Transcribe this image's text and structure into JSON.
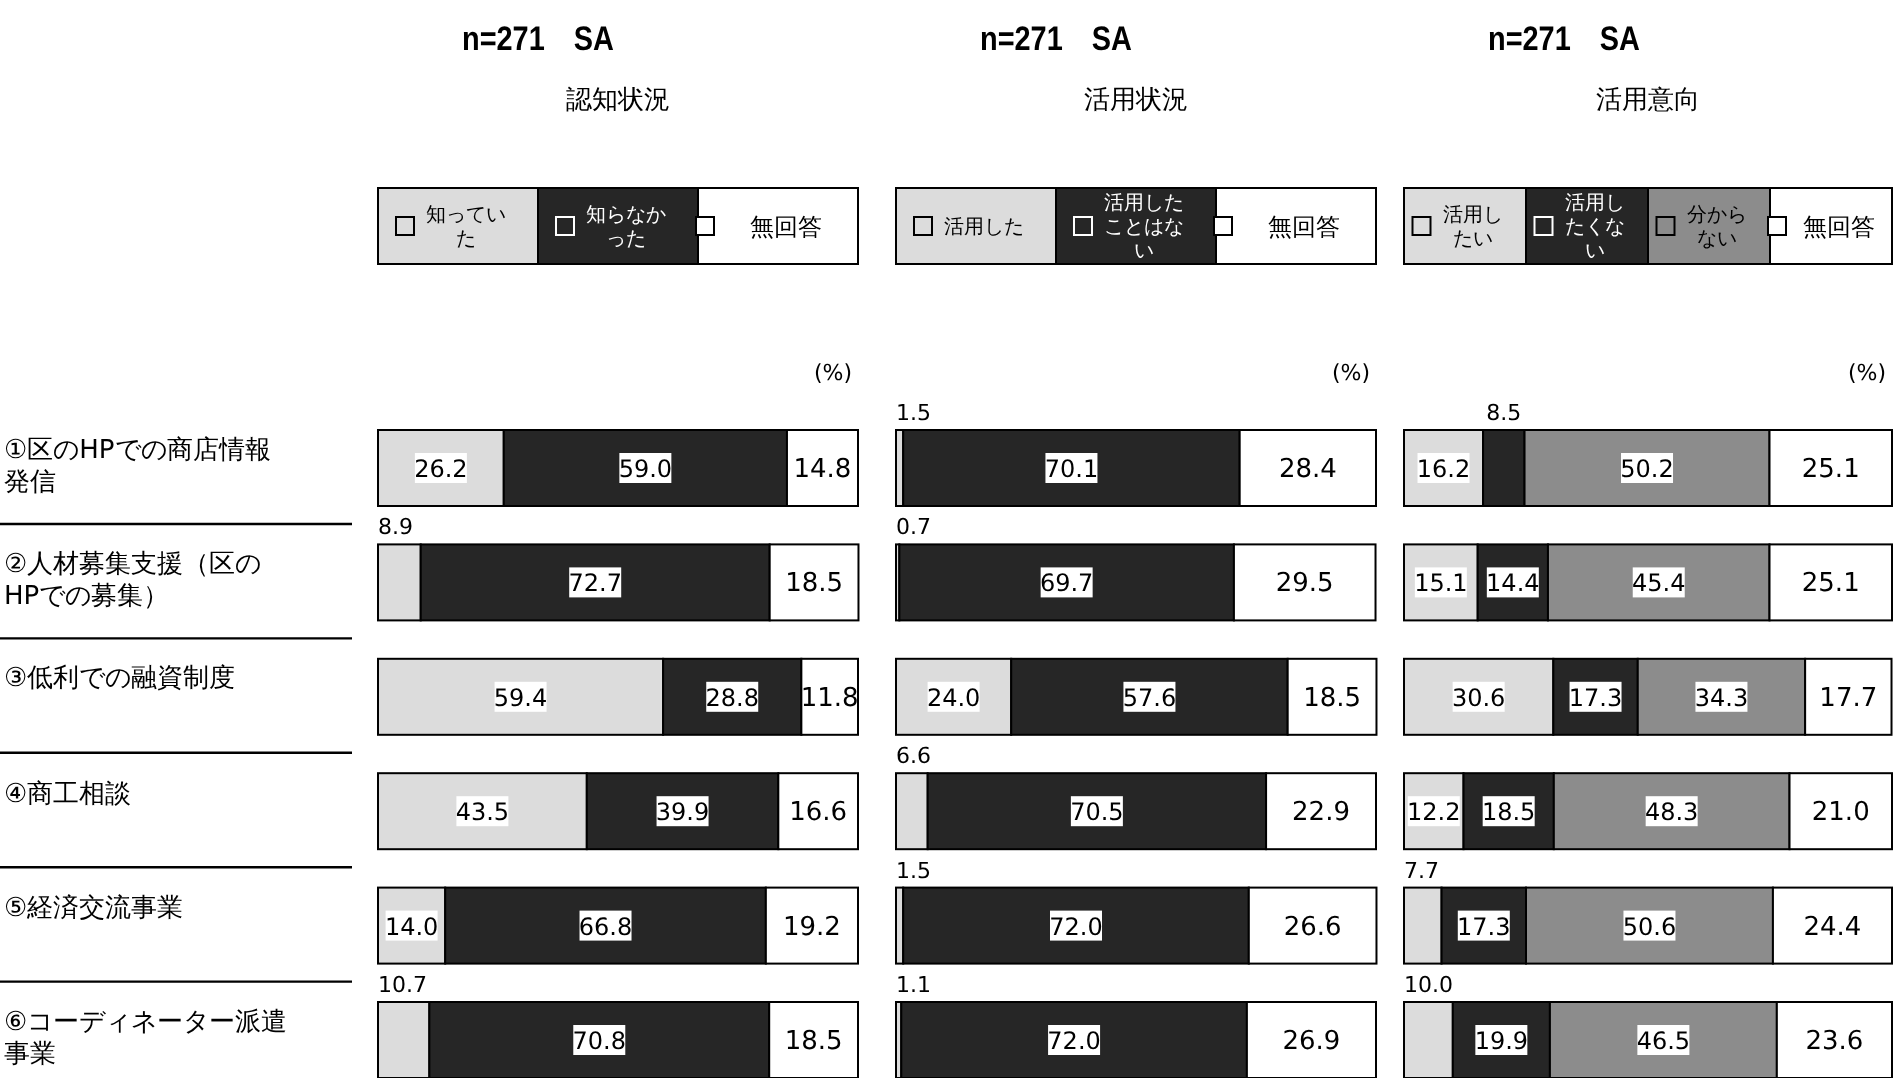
{
  "chart_data": [
    {
      "type": "bar",
      "orientation": "horizontal",
      "stacked": true,
      "title": "n=271　SA",
      "subtitle": "認知状況",
      "annotations": [
        "(%)"
      ],
      "legend": "top",
      "xlim": [
        0,
        100
      ],
      "categories": [
        "①区のHPでの商店情報発信",
        "②人材募集支援（区のHPでの募集）",
        "③低利での融資制度",
        "④商工相談",
        "⑤経済交流事業",
        "⑥コーディネーター派遣事業"
      ],
      "series": [
        {
          "name": "知っていた",
          "color": "#dcdcdc",
          "values": [
            26.2,
            8.9,
            59.4,
            43.5,
            14.0,
            10.7
          ],
          "value_labels": [
            "26.2",
            "8.9",
            "59.4",
            "43.5",
            "14.0",
            "10.7"
          ]
        },
        {
          "name": "知らなかった",
          "color": "#262626",
          "values": [
            59.0,
            72.7,
            28.8,
            39.9,
            66.8,
            70.8
          ],
          "value_labels": [
            "59.0",
            "72.7",
            "28.8",
            "39.9",
            "66.8",
            "70.8"
          ]
        },
        {
          "name": "無回答",
          "color": "#ffffff",
          "values": [
            14.8,
            18.5,
            11.8,
            16.6,
            19.2,
            18.5
          ],
          "value_labels": [
            "14.8",
            "18.5",
            "11.8",
            "16.6",
            "19.2",
            "18.5"
          ]
        }
      ]
    },
    {
      "type": "bar",
      "orientation": "horizontal",
      "stacked": true,
      "title": "n=271　SA",
      "subtitle": "活用状況",
      "annotations": [
        "(%)"
      ],
      "legend": "top",
      "xlim": [
        0,
        100
      ],
      "series": [
        {
          "name": "活用した",
          "color": "#dcdcdc",
          "values": [
            1.5,
            0.7,
            24.0,
            6.6,
            1.5,
            1.1
          ],
          "value_labels": [
            "1.5",
            "0.7",
            "24.0",
            "6.6",
            "1.5",
            "1.1"
          ]
        },
        {
          "name": "活用したことはない",
          "color": "#262626",
          "values": [
            70.1,
            69.7,
            57.6,
            70.5,
            72.0,
            72.0
          ],
          "value_labels": [
            "70.1",
            "69.7",
            "57.6",
            "70.5",
            "72.0",
            "72.0"
          ]
        },
        {
          "name": "無回答",
          "color": "#ffffff",
          "values": [
            28.4,
            29.5,
            18.5,
            22.9,
            26.6,
            26.9
          ],
          "value_labels": [
            "28.4",
            "29.5",
            "18.5",
            "22.9",
            "26.6",
            "26.9"
          ]
        }
      ]
    },
    {
      "type": "bar",
      "orientation": "horizontal",
      "stacked": true,
      "title": "n=271　SA",
      "subtitle": "活用意向",
      "annotations": [
        "(%)"
      ],
      "legend": "top",
      "xlim": [
        0,
        100
      ],
      "series": [
        {
          "name": "活用したい",
          "color": "#dcdcdc",
          "values": [
            16.2,
            15.1,
            30.6,
            12.2,
            7.7,
            10.0
          ],
          "value_labels": [
            "16.2",
            "15.1",
            "30.6",
            "12.2",
            "7.7",
            "10.0"
          ]
        },
        {
          "name": "活用したくない",
          "color": "#262626",
          "values": [
            8.5,
            14.4,
            17.3,
            18.5,
            17.3,
            19.9
          ],
          "value_labels": [
            "8.5",
            "14.4",
            "17.3",
            "18.5",
            "17.3",
            "19.9"
          ]
        },
        {
          "name": "分からない",
          "color": "#8c8c8c",
          "values": [
            50.2,
            45.4,
            34.3,
            48.3,
            50.6,
            46.5
          ],
          "value_labels": [
            "50.2",
            "45.4",
            "34.3",
            "48.3",
            "50.6",
            "46.5"
          ]
        },
        {
          "name": "無回答",
          "color": "#ffffff",
          "values": [
            25.1,
            25.1,
            17.7,
            21.0,
            24.4,
            23.6
          ],
          "value_labels": [
            "25.1",
            "25.1",
            "17.7",
            "21.0",
            "24.4",
            "23.6"
          ]
        }
      ]
    }
  ]
}
